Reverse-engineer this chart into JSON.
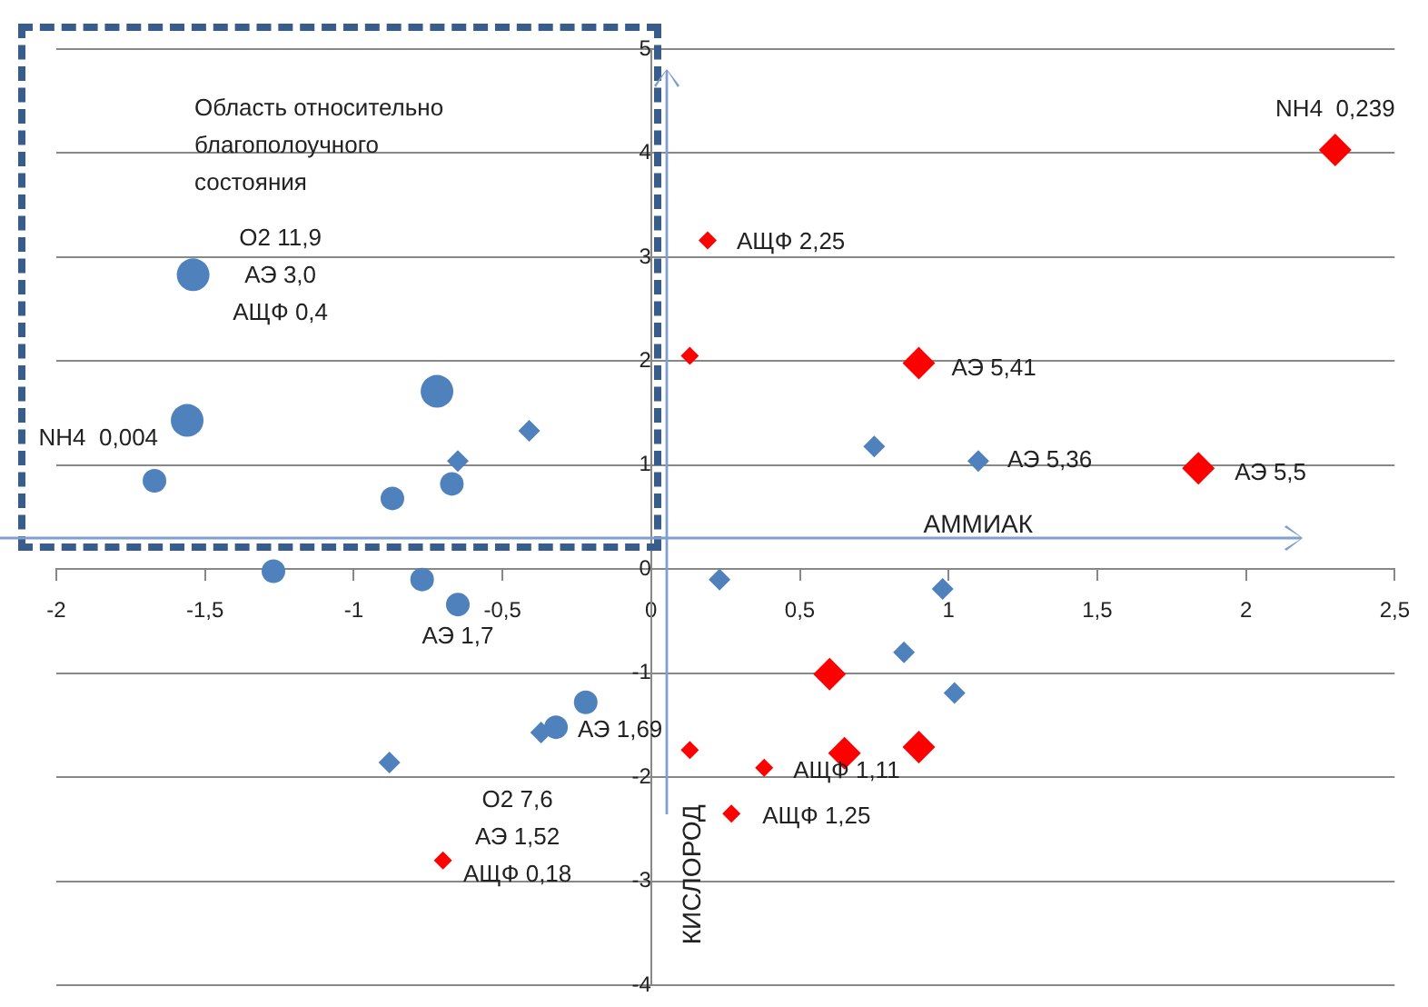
{
  "chart_data": {
    "type": "scatter",
    "xlabel": "АММИАК",
    "ylabel": "КИСЛОРОД",
    "xlim": [
      -2,
      2.5
    ],
    "ylim": [
      -4,
      5
    ],
    "xticks": [
      {
        "value": -2,
        "label": "-2"
      },
      {
        "value": -1.5,
        "label": "-1,5"
      },
      {
        "value": -1,
        "label": "-1"
      },
      {
        "value": -0.5,
        "label": "-0,5"
      },
      {
        "value": 0,
        "label": "0"
      },
      {
        "value": 0.5,
        "label": "0,5"
      },
      {
        "value": 1,
        "label": "1"
      },
      {
        "value": 1.5,
        "label": "1,5"
      },
      {
        "value": 2,
        "label": "2"
      },
      {
        "value": 2.5,
        "label": "2,5"
      }
    ],
    "yticks": [
      -4,
      -3,
      -2,
      -1,
      0,
      1,
      2,
      3,
      4,
      5
    ],
    "grid": "y",
    "legend": false,
    "series": [
      {
        "color": "#4f81bd",
        "marker": "circle",
        "x": [
          -1.54,
          -1.56,
          -0.72
        ],
        "values": [
          2.83,
          1.43,
          1.71
        ]
      },
      {
        "color": "#4f81bd",
        "marker": "circle",
        "x": [
          -1.67,
          -0.87,
          -0.67,
          -1.27,
          -0.77,
          -0.65,
          -0.22,
          -0.32
        ],
        "values": [
          0.85,
          0.68,
          0.82,
          -0.02,
          -0.1,
          -0.34,
          -1.28,
          -1.52
        ]
      },
      {
        "color": "#4f81bd",
        "marker": "diamond",
        "x": [
          -0.41,
          -0.65,
          0.75,
          1.1,
          0.23,
          0.98,
          0.85,
          1.02,
          -0.37,
          -0.88
        ],
        "values": [
          1.33,
          1.04,
          1.18,
          1.04,
          -0.1,
          -0.19,
          -0.8,
          -1.19,
          -1.57,
          -1.86
        ]
      },
      {
        "color": "#ff0000",
        "marker": "diamond",
        "x": [
          2.3,
          0.9,
          1.84,
          0.6,
          0.65,
          0.9
        ],
        "values": [
          4.03,
          1.98,
          0.97,
          -1.01,
          -1.77,
          -1.71
        ]
      },
      {
        "color": "#ff0000",
        "marker": "diamond",
        "x": [
          0.19,
          0.13,
          0.13,
          0.38,
          0.27,
          -0.7
        ],
        "values": [
          3.16,
          2.05,
          -1.74,
          -1.91,
          -2.35,
          -2.8
        ]
      }
    ],
    "annotations": [
      "Область относительно\nблагополоучного\nсостояния",
      {
        "text": "NH4  0,239",
        "x": 2.3,
        "y": 4.03
      },
      {
        "text": "АЩФ 2,25",
        "x": 0.19,
        "y": 3.16
      },
      {
        "text": "АЭ 5,41",
        "x": 0.9,
        "y": 1.98
      },
      {
        "text": "АЭ 5,36",
        "x": 1.1,
        "y": 1.04
      },
      {
        "text": "АЭ 5,5",
        "x": 1.84,
        "y": 0.97
      },
      {
        "text": "О2 11,9\nАЭ 3,0\nАЩФ 0,4",
        "x": -1.54,
        "y": 2.83
      },
      {
        "text": "NH4  0,004",
        "x": -1.56,
        "y": 1.43
      },
      {
        "text": "АЭ 1,7",
        "x": -0.65,
        "y": -0.34
      },
      {
        "text": "АЭ 1,69",
        "x": -0.32,
        "y": -1.52
      },
      {
        "text": "О2 7,6\nАЭ 1,52\nАЩФ 0,18",
        "x": -0.7,
        "y": -2.8
      },
      {
        "text": "АЩФ 1,11",
        "x": 0.38,
        "y": -1.91
      },
      {
        "text": "АЩФ 1,25",
        "x": 0.27,
        "y": -2.35
      }
    ]
  }
}
